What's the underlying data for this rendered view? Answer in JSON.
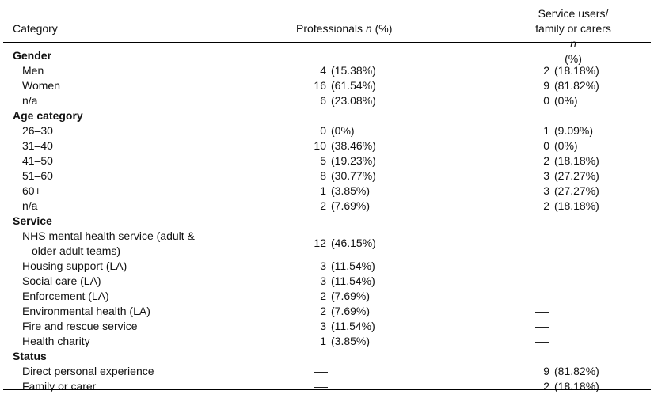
{
  "header": {
    "category": "Category",
    "professionals_prefix": "Professionals ",
    "professionals_n": "n",
    "professionals_suffix": " (%)",
    "service_line1": "Service users/",
    "service_line2_prefix": "family or carers ",
    "service_line2_n": "n",
    "service_line2_suffix": " (%)"
  },
  "rows": {
    "g_gender": {
      "label": "Gender"
    },
    "men": {
      "label": "Men",
      "p_n": "4",
      "p_pct": "(15.38%)",
      "s_n": "2",
      "s_pct": "(18.18%)"
    },
    "women": {
      "label": "Women",
      "p_n": "16",
      "p_pct": "(61.54%)",
      "s_n": "9",
      "s_pct": "(81.82%)"
    },
    "na1": {
      "label": "n/a",
      "p_n": "6",
      "p_pct": "(23.08%)",
      "s_n": "0",
      "s_pct": "(0%)"
    },
    "g_age": {
      "label": "Age category"
    },
    "a2630": {
      "label": "26–30",
      "p_n": "0",
      "p_pct": "(0%)",
      "s_n": "1",
      "s_pct": "(9.09%)"
    },
    "a3140": {
      "label": "31–40",
      "p_n": "10",
      "p_pct": "(38.46%)",
      "s_n": "0",
      "s_pct": "(0%)"
    },
    "a4150": {
      "label": "41–50",
      "p_n": "5",
      "p_pct": "(19.23%)",
      "s_n": "2",
      "s_pct": "(18.18%)"
    },
    "a5160": {
      "label": "51–60",
      "p_n": "8",
      "p_pct": "(30.77%)",
      "s_n": "3",
      "s_pct": "(27.27%)"
    },
    "a60": {
      "label": "60+",
      "p_n": "1",
      "p_pct": "(3.85%)",
      "s_n": "3",
      "s_pct": "(27.27%)"
    },
    "na2": {
      "label": "n/a",
      "p_n": "2",
      "p_pct": "(7.69%)",
      "s_n": "2",
      "s_pct": "(18.18%)"
    },
    "g_service": {
      "label": "Service"
    },
    "nhs": {
      "label_line1": "NHS mental health service (adult &",
      "label_line2": "older adult teams)",
      "p_n": "12",
      "p_pct": "(46.15%)"
    },
    "housing": {
      "label": "Housing support (LA)",
      "p_n": "3",
      "p_pct": "(11.54%)"
    },
    "social": {
      "label": "Social care (LA)",
      "p_n": "3",
      "p_pct": "(11.54%)"
    },
    "enforcement": {
      "label": "Enforcement (LA)",
      "p_n": "2",
      "p_pct": "(7.69%)"
    },
    "envhealth": {
      "label": "Environmental health (LA)",
      "p_n": "2",
      "p_pct": "(7.69%)"
    },
    "fire": {
      "label": "Fire and rescue service",
      "p_n": "3",
      "p_pct": "(11.54%)"
    },
    "charity": {
      "label": "Health charity",
      "p_n": "1",
      "p_pct": "(3.85%)"
    },
    "g_status": {
      "label": "Status"
    },
    "direct": {
      "label": "Direct personal experience",
      "s_n": "9",
      "s_pct": "(81.82%)"
    },
    "family": {
      "label": "Family or carer",
      "s_n": "2",
      "s_pct": "(18.18%)"
    }
  }
}
